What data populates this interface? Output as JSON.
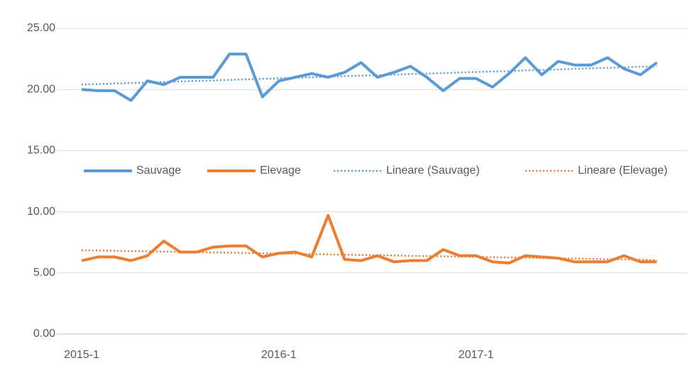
{
  "chart_data": {
    "type": "line",
    "categories": [
      "2015-1",
      null,
      null,
      null,
      null,
      null,
      null,
      null,
      null,
      null,
      null,
      null,
      "2016-1",
      null,
      null,
      null,
      null,
      null,
      null,
      null,
      null,
      null,
      null,
      null,
      "2017-1",
      null,
      null,
      null,
      null,
      null,
      null,
      null,
      null,
      null,
      null,
      null
    ],
    "series": [
      {
        "name": "Sauvage",
        "color": "#5b9bd5",
        "style": "solid",
        "values": [
          20.0,
          19.9,
          19.9,
          19.1,
          20.7,
          20.4,
          21.0,
          21.0,
          21.0,
          22.9,
          22.9,
          19.4,
          20.7,
          21.0,
          21.3,
          21.0,
          21.4,
          22.2,
          21.0,
          21.4,
          21.9,
          21.0,
          19.9,
          20.9,
          20.9,
          20.2,
          21.3,
          22.6,
          21.2,
          22.3,
          22.0,
          22.0,
          22.6,
          21.7,
          21.2,
          22.2
        ]
      },
      {
        "name": "Elevage",
        "color": "#ed7d31",
        "style": "solid",
        "values": [
          6.0,
          6.3,
          6.3,
          6.0,
          6.4,
          7.6,
          6.7,
          6.7,
          7.1,
          7.2,
          7.2,
          6.3,
          6.6,
          6.7,
          6.3,
          9.7,
          6.1,
          6.0,
          6.4,
          5.9,
          6.0,
          6.0,
          6.9,
          6.4,
          6.4,
          5.9,
          5.8,
          6.4,
          6.3,
          6.2,
          5.9,
          5.9,
          5.9,
          6.4,
          5.9,
          5.9
        ]
      },
      {
        "name": "Lineare (Sauvage)",
        "color": "#5b9bd5",
        "style": "dotted",
        "values": [
          20.4,
          20.44,
          20.49,
          20.53,
          20.57,
          20.61,
          20.66,
          20.7,
          20.74,
          20.79,
          20.83,
          20.87,
          20.91,
          20.96,
          21.0,
          21.04,
          21.09,
          21.13,
          21.17,
          21.21,
          21.26,
          21.3,
          21.34,
          21.39,
          21.43,
          21.47,
          21.51,
          21.56,
          21.6,
          21.64,
          21.69,
          21.73,
          21.77,
          21.81,
          21.86,
          21.9
        ]
      },
      {
        "name": "Lineare (Elevage)",
        "color": "#ed7d31",
        "style": "dotted",
        "values": [
          6.85,
          6.83,
          6.8,
          6.78,
          6.76,
          6.74,
          6.71,
          6.69,
          6.67,
          6.65,
          6.62,
          6.6,
          6.58,
          6.55,
          6.53,
          6.51,
          6.48,
          6.46,
          6.44,
          6.42,
          6.39,
          6.37,
          6.35,
          6.33,
          6.3,
          6.28,
          6.26,
          6.24,
          6.21,
          6.19,
          6.17,
          6.15,
          6.12,
          6.1,
          6.08,
          6.05
        ]
      }
    ],
    "ylim": [
      0,
      25
    ],
    "yticks": [
      {
        "value": 0,
        "label": "0.00"
      },
      {
        "value": 5,
        "label": "5.00"
      },
      {
        "value": 10,
        "label": "10.00"
      },
      {
        "value": 15,
        "label": "15.00"
      },
      {
        "value": 20,
        "label": "20.00"
      },
      {
        "value": 25,
        "label": "25.00"
      }
    ],
    "grid": true,
    "legend": "center"
  }
}
